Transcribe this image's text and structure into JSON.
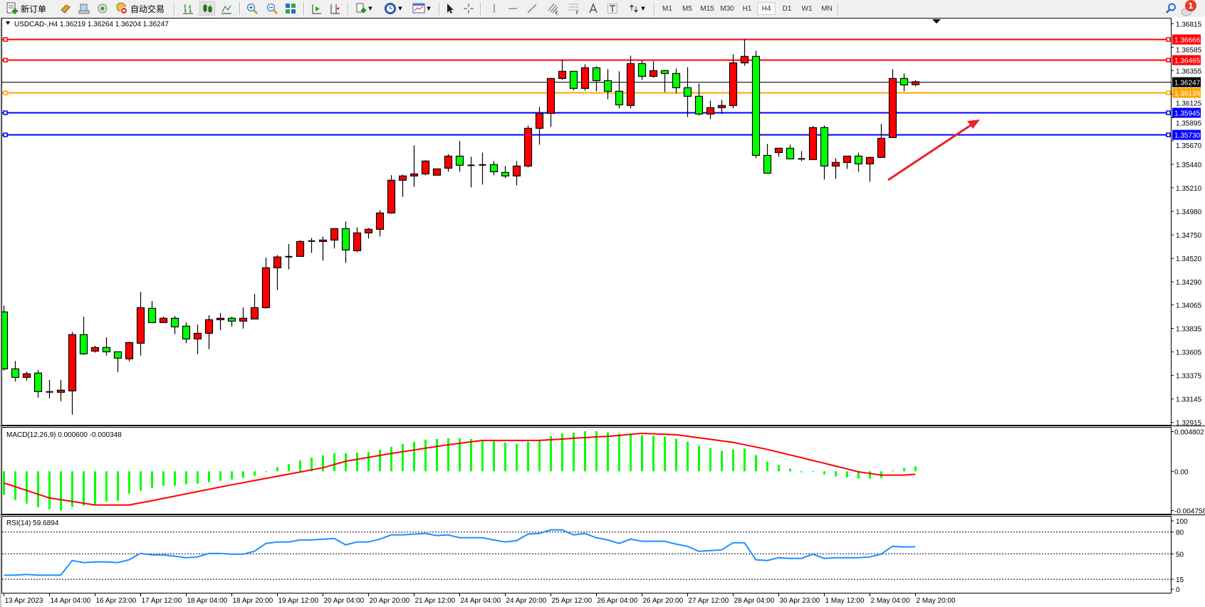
{
  "toolbar": {
    "new_order_label": "新订单",
    "auto_trading_label": "自动交易",
    "timeframes": [
      "M1",
      "M5",
      "M15",
      "M30",
      "H1",
      "H4",
      "D1",
      "W1",
      "MN"
    ],
    "active_timeframe": "H4",
    "notification_count": "1"
  },
  "chart": {
    "header": "USDCAD-,H4  1.36219 1.36264 1.36204 1.36247",
    "symbol": "USDCAD-",
    "timeframe": "H4",
    "bull_color": "#ff0000",
    "bear_color": "#00ff00",
    "price_ticks": [
      "1.36815",
      "1.36585",
      "1.36355",
      "1.36125",
      "1.35895",
      "1.35670",
      "1.35440",
      "1.35210",
      "1.34980",
      "1.34750",
      "1.34520",
      "1.34290",
      "1.34065",
      "1.33835",
      "1.33605",
      "1.33375",
      "1.33145",
      "1.32915"
    ],
    "hlines": [
      {
        "price": 1.36666,
        "label": "1.36666",
        "color": "#ff0000"
      },
      {
        "price": 1.36465,
        "label": "1.36465",
        "color": "#ff0000"
      },
      {
        "price": 1.36139,
        "label": "1.36139",
        "color": "#ffa500"
      },
      {
        "price": 1.35945,
        "label": "1.35945",
        "color": "#0000ff"
      },
      {
        "price": 1.3573,
        "label": "1.35730",
        "color": "#0000ff"
      }
    ],
    "current_price": {
      "price": 1.36247,
      "label": "1.36247",
      "color": "#000000"
    },
    "arrow_color": "#e8232a",
    "time_labels": [
      "13 Apr 2023",
      "14 Apr 04:00",
      "16 Apr 23:00",
      "17 Apr 12:00",
      "18 Apr 04:00",
      "18 Apr 20:00",
      "19 Apr 12:00",
      "20 Apr 04:00",
      "20 Apr 20:00",
      "21 Apr 12:00",
      "24 Apr 04:00",
      "24 Apr 20:00",
      "25 Apr 12:00",
      "26 Apr 04:00",
      "26 Apr 20:00",
      "27 Apr 12:00",
      "28 Apr 04:00",
      "30 Apr 23:00",
      "1 May 12:00",
      "2 May 04:00",
      "2 May 20:00"
    ]
  },
  "macd": {
    "header": "MACD(12,26,9) 0.000600 -0.000348",
    "axis_labels": [
      "0.004802",
      "0.00",
      "-0.004758"
    ],
    "hist_color": "#00ff00",
    "signal_color": "#ff0000"
  },
  "rsi": {
    "header": "RSI(14) 59.6894",
    "axis_labels": [
      "100",
      "80",
      "50",
      "15",
      "0"
    ],
    "levels": [
      80,
      50,
      15
    ],
    "line_color": "#1e90ff"
  },
  "chart_data": [
    {
      "type": "candlestick",
      "series_format": [
        "open",
        "high",
        "low",
        "close"
      ],
      "ohlc": [
        [
          1.33996,
          1.34059,
          1.33423,
          1.33439
        ],
        [
          1.33439,
          1.33516,
          1.33316,
          1.33356
        ],
        [
          1.33356,
          1.33412,
          1.33325,
          1.33391
        ],
        [
          1.33398,
          1.33428,
          1.33158,
          1.33217
        ],
        [
          1.33214,
          1.3333,
          1.33151,
          1.33214
        ],
        [
          1.3321,
          1.3333,
          1.33123,
          1.33231
        ],
        [
          1.33224,
          1.33801,
          1.32991,
          1.33774
        ],
        [
          1.33774,
          1.3395,
          1.33576,
          1.33586
        ],
        [
          1.33613,
          1.33664,
          1.33597,
          1.33648
        ],
        [
          1.33648,
          1.33748,
          1.33569,
          1.33606
        ],
        [
          1.33606,
          1.33606,
          1.33409,
          1.33544
        ],
        [
          1.33537,
          1.33704,
          1.33513,
          1.33697
        ],
        [
          1.3369,
          1.34193,
          1.33569,
          1.34038
        ],
        [
          1.34031,
          1.34103,
          1.33892,
          1.33892
        ],
        [
          1.33892,
          1.3395,
          1.33892,
          1.33934
        ],
        [
          1.33934,
          1.33957,
          1.33778,
          1.3385
        ],
        [
          1.33857,
          1.33894,
          1.3369,
          1.33732
        ],
        [
          1.33732,
          1.33873,
          1.33583,
          1.33787
        ],
        [
          1.33787,
          1.33964,
          1.33632,
          1.3392
        ],
        [
          1.3392,
          1.33984,
          1.33819,
          1.33934
        ],
        [
          1.33934,
          1.3395,
          1.33854,
          1.33906
        ],
        [
          1.33906,
          1.3404,
          1.33833,
          1.33934
        ],
        [
          1.33927,
          1.34172,
          1.33927,
          1.34038
        ],
        [
          1.34038,
          1.34527,
          1.34028,
          1.34428
        ],
        [
          1.34428,
          1.34553,
          1.34209,
          1.34534
        ],
        [
          1.34536,
          1.3466,
          1.34411,
          1.34536
        ],
        [
          1.34539,
          1.34699,
          1.34539,
          1.34685
        ],
        [
          1.34689,
          1.3472,
          1.34573,
          1.34689
        ],
        [
          1.34685,
          1.34734,
          1.34497,
          1.34699
        ],
        [
          1.34699,
          1.34811,
          1.34616,
          1.34811
        ],
        [
          1.34811,
          1.3488,
          1.34476,
          1.34602
        ],
        [
          1.34595,
          1.34824,
          1.34581,
          1.34769
        ],
        [
          1.34769,
          1.34818,
          1.34713,
          1.34804
        ],
        [
          1.34804,
          1.34992,
          1.34734,
          1.34964
        ],
        [
          1.34964,
          1.35333,
          1.34957,
          1.35284
        ],
        [
          1.35284,
          1.3534,
          1.35121,
          1.35326
        ],
        [
          1.35326,
          1.35625,
          1.35221,
          1.35346
        ],
        [
          1.35346,
          1.35479,
          1.35333,
          1.35472
        ],
        [
          1.35333,
          1.35395,
          1.35333,
          1.35395
        ],
        [
          1.35402,
          1.35541,
          1.35367,
          1.3552
        ],
        [
          1.3552,
          1.35667,
          1.35367,
          1.3543
        ],
        [
          1.3543,
          1.35514,
          1.35214,
          1.3543
        ],
        [
          1.35434,
          1.35555,
          1.35242,
          1.35434
        ],
        [
          1.35437,
          1.35472,
          1.35333,
          1.35367
        ],
        [
          1.3536,
          1.35423,
          1.35305,
          1.35326
        ],
        [
          1.35326,
          1.35472,
          1.35235,
          1.35423
        ],
        [
          1.35423,
          1.3582,
          1.35409,
          1.35792
        ],
        [
          1.35792,
          1.36001,
          1.35632,
          1.35938
        ],
        [
          1.35938,
          1.36286,
          1.35806,
          1.36279
        ],
        [
          1.36279,
          1.3646,
          1.36265,
          1.36349
        ],
        [
          1.36349,
          1.36349,
          1.36161,
          1.36182
        ],
        [
          1.36182,
          1.36418,
          1.36161,
          1.36384
        ],
        [
          1.36384,
          1.36397,
          1.36154,
          1.36258
        ],
        [
          1.36258,
          1.3637,
          1.36077,
          1.36154
        ],
        [
          1.36154,
          1.36349,
          1.35987,
          1.36022
        ],
        [
          1.36015,
          1.36502,
          1.35987,
          1.36425
        ],
        [
          1.36425,
          1.36453,
          1.36265,
          1.363
        ],
        [
          1.363,
          1.36446,
          1.36286,
          1.36356
        ],
        [
          1.36356,
          1.36363,
          1.36147,
          1.36328
        ],
        [
          1.36328,
          1.36377,
          1.36133,
          1.36189
        ],
        [
          1.36189,
          1.3639,
          1.35903,
          1.36105
        ],
        [
          1.36105,
          1.3623,
          1.35917,
          1.35931
        ],
        [
          1.35931,
          1.36063,
          1.35882,
          1.35994
        ],
        [
          1.35994,
          1.3607,
          1.35931,
          1.36015
        ],
        [
          1.36015,
          1.36516,
          1.35987,
          1.36432
        ],
        [
          1.36432,
          1.36664,
          1.36404,
          1.36495
        ],
        [
          1.36495,
          1.36551,
          1.355,
          1.35527
        ],
        [
          1.35527,
          1.35639,
          1.35353,
          1.35353
        ],
        [
          1.35555,
          1.35597,
          1.35514,
          1.35597
        ],
        [
          1.35597,
          1.35632,
          1.35493,
          1.35493
        ],
        [
          1.35493,
          1.35569,
          1.35472,
          1.35493
        ],
        [
          1.35486,
          1.35813,
          1.35486,
          1.35799
        ],
        [
          1.35799,
          1.3582,
          1.35291,
          1.35423
        ],
        [
          1.35423,
          1.355,
          1.35298,
          1.35458
        ],
        [
          1.35458,
          1.3552,
          1.35395,
          1.3552
        ],
        [
          1.3552,
          1.35555,
          1.35367,
          1.35444
        ],
        [
          1.35444,
          1.35514,
          1.3527,
          1.35507
        ],
        [
          1.35507,
          1.35834,
          1.35507,
          1.35694
        ],
        [
          1.35701,
          1.3637,
          1.35701,
          1.36279
        ],
        [
          1.36279,
          1.36328,
          1.36154,
          1.36216
        ],
        [
          1.36219,
          1.36264,
          1.36204,
          1.36247
        ]
      ],
      "ylim": [
        1.32915,
        1.36815
      ]
    },
    {
      "type": "bar+line",
      "name": "MACD(12,26,9)",
      "histogram": [
        -0.00287,
        -0.00348,
        -0.00391,
        -0.00434,
        -0.0046,
        -0.00477,
        -0.00434,
        -0.00417,
        -0.004,
        -0.00365,
        -0.00356,
        -0.0027,
        -0.00236,
        -0.00201,
        -0.00175,
        -0.00175,
        -0.00158,
        -0.00149,
        -0.00132,
        -0.00115,
        -0.00098,
        -0.0008,
        -0.00054,
        -3e-05,
        0.00052,
        0.00086,
        0.00132,
        0.00167,
        0.00193,
        0.00219,
        0.00219,
        0.00227,
        0.00236,
        0.00262,
        0.00296,
        0.00331,
        0.00357,
        0.00383,
        0.00391,
        0.004,
        0.004,
        0.00391,
        0.00383,
        0.00365,
        0.00348,
        0.00331,
        0.00357,
        0.00374,
        0.00426,
        0.0046,
        0.00469,
        0.00486,
        0.00486,
        0.00472,
        0.00455,
        0.00455,
        0.00438,
        0.00429,
        0.0042,
        0.00394,
        0.0036,
        0.00308,
        0.00282,
        0.00248,
        0.00265,
        0.00274,
        0.00196,
        0.00118,
        0.00075,
        0.00032,
        -0.00011,
        -6e-05,
        -0.00037,
        -0.00063,
        -0.00072,
        -0.00089,
        -0.00089,
        -0.0008,
        9e-05,
        0.0004,
        0.0006
      ],
      "signal": [
        -0.00141,
        -0.00186,
        -0.00232,
        -0.00277,
        -0.00322,
        -0.00344,
        -0.00365,
        -0.00387,
        -0.00408,
        -0.00408,
        -0.00408,
        -0.00408,
        -0.00382,
        -0.00356,
        -0.00328,
        -0.00301,
        -0.00273,
        -0.00245,
        -0.00218,
        -0.0019,
        -0.00164,
        -0.00138,
        -0.00112,
        -0.00086,
        -0.0006,
        -0.00034,
        -9e-05,
        0.00017,
        0.00043,
        0.00082,
        0.00121,
        0.00145,
        0.00169,
        0.00192,
        0.00216,
        0.00237,
        0.00258,
        0.0028,
        0.00301,
        0.00322,
        0.00339,
        0.00357,
        0.00374,
        0.00374,
        0.00374,
        0.00374,
        0.00374,
        0.00374,
        0.00383,
        0.00391,
        0.004,
        0.00408,
        0.00417,
        0.00423,
        0.00435,
        0.00448,
        0.0046,
        0.00454,
        0.00449,
        0.00443,
        0.00425,
        0.00406,
        0.00388,
        0.00369,
        0.00351,
        0.00322,
        0.00294,
        0.00265,
        0.00232,
        0.00198,
        0.00165,
        0.00131,
        0.00098,
        0.00063,
        0.00029,
        -6e-05,
        -0.00026,
        -0.00046,
        -0.00046,
        -0.00046,
        -0.00035
      ],
      "ylim": [
        -0.004758,
        0.004802
      ]
    },
    {
      "type": "line",
      "name": "RSI(14)",
      "values": [
        20.6,
        20.6,
        21.6,
        20.6,
        20.6,
        20.6,
        40.8,
        37.9,
        38.9,
        38.9,
        37.9,
        41.8,
        50.6,
        48.6,
        48.6,
        46.7,
        44.7,
        45.7,
        50.6,
        50.6,
        49.6,
        49.6,
        53.5,
        64.3,
        66.3,
        66.3,
        69.2,
        69.2,
        70.2,
        71.2,
        62.4,
        66.3,
        66.3,
        70.2,
        76.1,
        76.1,
        77.1,
        78.1,
        75.2,
        76.1,
        72.2,
        72.2,
        72.2,
        69.2,
        66.3,
        68.2,
        77.1,
        78.1,
        83.0,
        83.0,
        76.1,
        78.1,
        72.2,
        69.2,
        64.3,
        70.2,
        67.3,
        67.3,
        67.3,
        63.4,
        60.4,
        53.5,
        54.5,
        55.5,
        65.3,
        65.3,
        41.8,
        40.8,
        44.7,
        43.7,
        43.7,
        49.6,
        43.7,
        44.7,
        44.7,
        44.7,
        45.7,
        49.6,
        60.4,
        59.5,
        59.7
      ],
      "ylim": [
        0,
        100
      ]
    }
  ]
}
